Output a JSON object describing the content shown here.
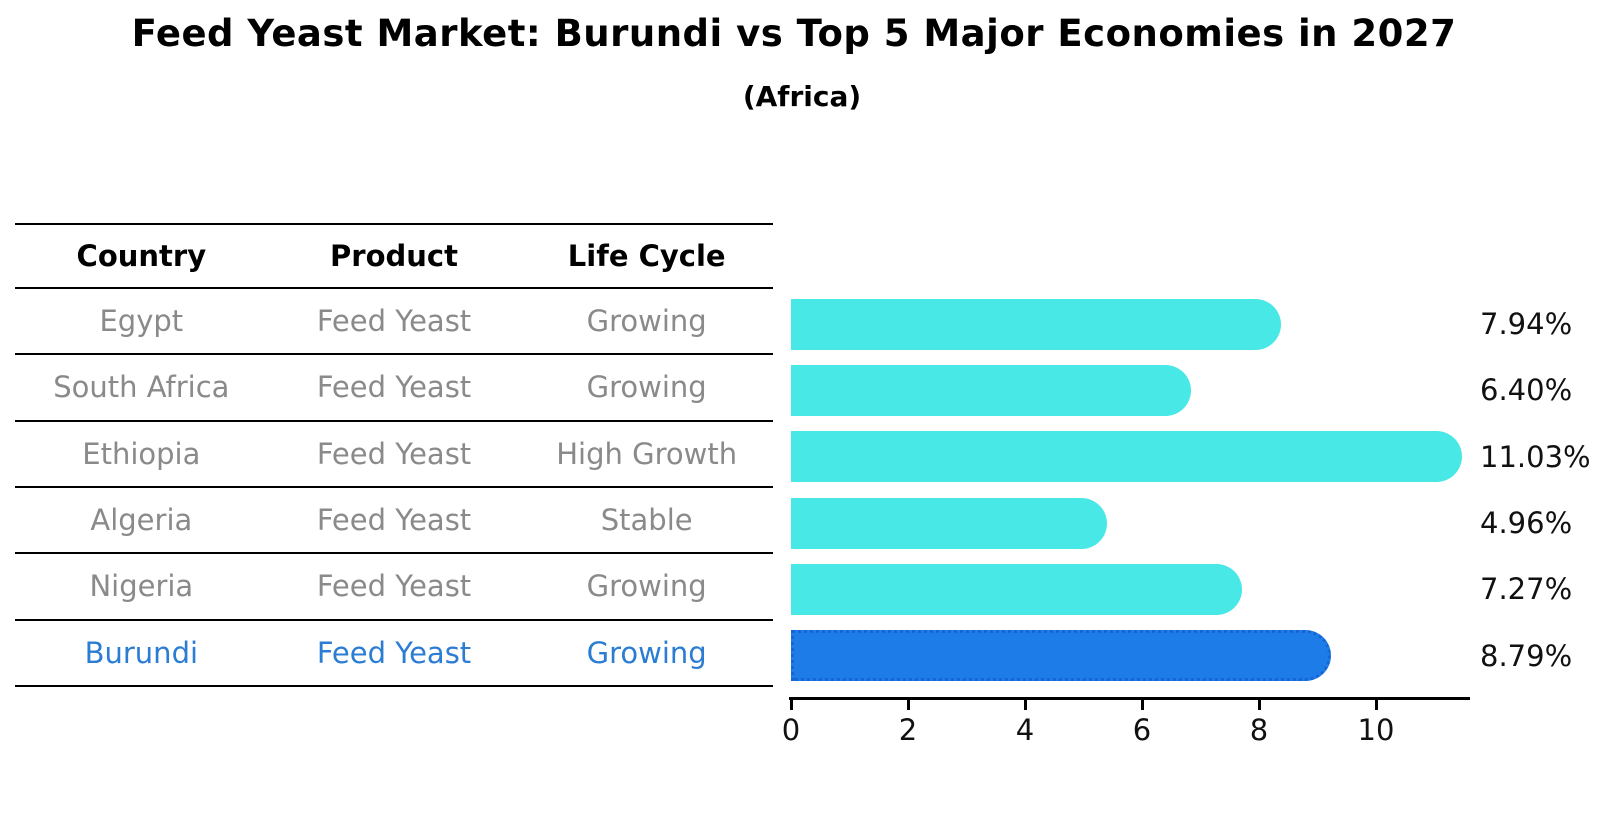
{
  "title": "Feed Yeast Market: Burundi vs Top 5 Major Economies in 2027",
  "subtitle": "(Africa)",
  "table": {
    "columns": [
      "Country",
      "Product",
      "Life Cycle"
    ],
    "rows": [
      {
        "country": "Egypt",
        "product": "Feed Yeast",
        "life_cycle": "Growing"
      },
      {
        "country": "South Africa",
        "product": "Feed Yeast",
        "life_cycle": "Growing"
      },
      {
        "country": "Ethiopia",
        "product": "Feed Yeast",
        "life_cycle": "High Growth"
      },
      {
        "country": "Algeria",
        "product": "Feed Yeast",
        "life_cycle": "Stable"
      },
      {
        "country": "Nigeria",
        "product": "Feed Yeast",
        "life_cycle": "Growing"
      },
      {
        "country": "Burundi",
        "product": "Feed Yeast",
        "life_cycle": "Growing"
      }
    ]
  },
  "chart_data": {
    "type": "bar",
    "orientation": "horizontal",
    "title": "Feed Yeast Market: Burundi vs Top 5 Major Economies in 2027",
    "subtitle": "(Africa)",
    "categories": [
      "Egypt",
      "South Africa",
      "Ethiopia",
      "Algeria",
      "Nigeria",
      "Burundi"
    ],
    "values": [
      7.94,
      6.4,
      11.03,
      4.96,
      7.27,
      8.79
    ],
    "value_labels": [
      "7.94%",
      "6.40%",
      "11.03%",
      "4.96%",
      "7.27%",
      "8.79%"
    ],
    "x_ticks": [
      0,
      2,
      4,
      6,
      8,
      10
    ],
    "xlim": [
      0,
      11.58
    ],
    "grid": false,
    "legend": false,
    "highlight_index": 5,
    "bar_color": "#48E8E6",
    "highlight_color": "#1E7CE8",
    "highlight_border_color": "#1565D4"
  },
  "colors": {
    "text_muted": "#8a8a8a",
    "highlight_text": "#2B7CD3",
    "axis_color": "#000000"
  }
}
